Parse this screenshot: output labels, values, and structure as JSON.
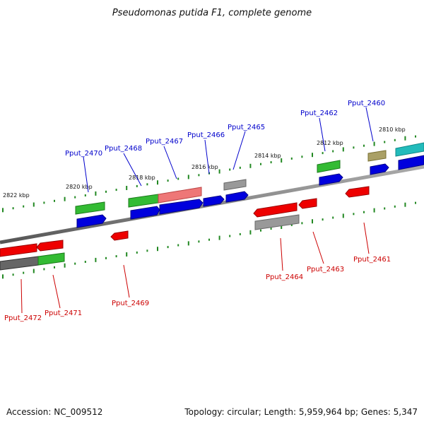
{
  "title": "Pseudomonas putida F1, complete genome",
  "accession": "Accession: NC_009512",
  "summary": "Topology: circular; Length: 5,959,964 bp; Genes: 5,347",
  "kbp_labels": [
    "2822 kbp",
    "2820 kbp",
    "2818 kbp",
    "2816 kbp",
    "2814 kbp",
    "2812 kbp",
    "2810 kbp"
  ],
  "top_labels": [
    "Pput_2470",
    "Pput_2468",
    "Pput_2467",
    "Pput_2466",
    "Pput_2465",
    "Pput_2462",
    "Pput_2460"
  ],
  "bottom_labels": [
    "Pput_2472",
    "Pput_2471",
    "Pput_2469",
    "Pput_2464",
    "Pput_2463",
    "Pput_2461"
  ],
  "colors": {
    "blue": "#0000dd",
    "red": "#ee0000",
    "green": "#33bb33",
    "gray": "#999999",
    "pink": "#ee7777",
    "olive": "#aaa066",
    "cyan": "#22bbbb",
    "darkgray": "#666666",
    "label_top": "#0000cc",
    "label_bottom": "#cc0000",
    "tick": "#228822"
  }
}
